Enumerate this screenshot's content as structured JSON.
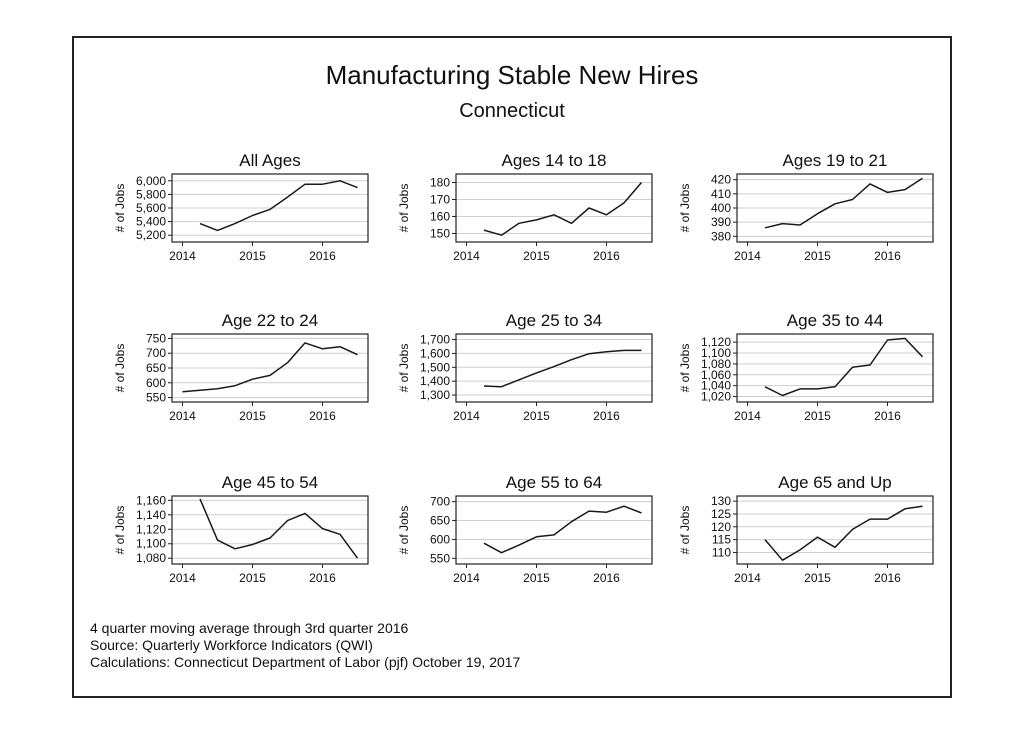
{
  "figure": {
    "title": "Manufacturing Stable New Hires",
    "subtitle": "Connecticut",
    "notes": [
      "4 quarter moving average through 3rd quarter 2016",
      "Source: Quarterly Workforce Indicators (QWI)",
      "Calculations: Connecticut Department of Labor (pjf) October 19, 2017"
    ]
  },
  "chart_data": [
    {
      "type": "line",
      "title": "All Ages",
      "ylabel": "# of Jobs",
      "xlim": [
        2013.85,
        2016.65
      ],
      "xticks": [
        2014,
        2015,
        2016
      ],
      "xtick_labels": [
        "2014",
        "2015",
        "2016"
      ],
      "ylim": [
        5100,
        6100
      ],
      "yticks": [
        5200,
        5400,
        5600,
        5800,
        6000
      ],
      "ytick_labels": [
        "5,200",
        "5,400",
        "5,600",
        "5,800",
        "6,000"
      ],
      "grid": true,
      "x": [
        2014.25,
        2014.5,
        2014.75,
        2015.0,
        2015.25,
        2015.5,
        2015.75,
        2016.0,
        2016.25,
        2016.5
      ],
      "y": [
        5370,
        5270,
        5370,
        5490,
        5580,
        5760,
        5950,
        5950,
        6000,
        5900
      ]
    },
    {
      "type": "line",
      "title": "Ages 14 to 18",
      "ylabel": "# of Jobs",
      "xlim": [
        2013.85,
        2016.65
      ],
      "xticks": [
        2014,
        2015,
        2016
      ],
      "xtick_labels": [
        "2014",
        "2015",
        "2016"
      ],
      "ylim": [
        145,
        185
      ],
      "yticks": [
        150,
        160,
        170,
        180
      ],
      "ytick_labels": [
        "150",
        "160",
        "170",
        "180"
      ],
      "grid": true,
      "x": [
        2014.25,
        2014.5,
        2014.75,
        2015.0,
        2015.25,
        2015.5,
        2015.75,
        2016.0,
        2016.25,
        2016.5
      ],
      "y": [
        152,
        149,
        156,
        158,
        161,
        156,
        165,
        161,
        168,
        180
      ]
    },
    {
      "type": "line",
      "title": "Ages 19 to 21",
      "ylabel": "# of Jobs",
      "xlim": [
        2013.85,
        2016.65
      ],
      "xticks": [
        2014,
        2015,
        2016
      ],
      "xtick_labels": [
        "2014",
        "2015",
        "2016"
      ],
      "ylim": [
        376,
        424
      ],
      "yticks": [
        380,
        390,
        400,
        410,
        420
      ],
      "ytick_labels": [
        "380",
        "390",
        "400",
        "410",
        "420"
      ],
      "grid": true,
      "x": [
        2014.25,
        2014.5,
        2014.75,
        2015.0,
        2015.25,
        2015.5,
        2015.75,
        2016.0,
        2016.25,
        2016.5
      ],
      "y": [
        386,
        389,
        388,
        396,
        403,
        406,
        417,
        411,
        413,
        421
      ]
    },
    {
      "type": "line",
      "title": "Age 22 to 24",
      "ylabel": "# of Jobs",
      "xlim": [
        2013.85,
        2016.65
      ],
      "xticks": [
        2014,
        2015,
        2016
      ],
      "xtick_labels": [
        "2014",
        "2015",
        "2016"
      ],
      "ylim": [
        535,
        765
      ],
      "yticks": [
        550,
        600,
        650,
        700,
        750
      ],
      "ytick_labels": [
        "550",
        "600",
        "650",
        "700",
        "750"
      ],
      "grid": true,
      "x": [
        2014.0,
        2014.25,
        2014.5,
        2014.75,
        2015.0,
        2015.25,
        2015.5,
        2015.75,
        2016.0,
        2016.25,
        2016.5
      ],
      "y": [
        570,
        575,
        580,
        590,
        612,
        625,
        668,
        735,
        715,
        722,
        695
      ]
    },
    {
      "type": "line",
      "title": "Age 25 to 34",
      "ylabel": "# of Jobs",
      "xlim": [
        2013.85,
        2016.65
      ],
      "xticks": [
        2014,
        2015,
        2016
      ],
      "xtick_labels": [
        "2014",
        "2015",
        "2016"
      ],
      "ylim": [
        1250,
        1740
      ],
      "yticks": [
        1300,
        1400,
        1500,
        1600,
        1700
      ],
      "ytick_labels": [
        "1,300",
        "1,400",
        "1,500",
        "1,600",
        "1,700"
      ],
      "grid": true,
      "x": [
        2014.25,
        2014.5,
        2014.75,
        2015.0,
        2015.25,
        2015.5,
        2015.75,
        2016.0,
        2016.25,
        2016.5
      ],
      "y": [
        1365,
        1360,
        1410,
        1460,
        1505,
        1555,
        1598,
        1612,
        1622,
        1622
      ]
    },
    {
      "type": "line",
      "title": "Age 35 to 44",
      "ylabel": "# of Jobs",
      "xlim": [
        2013.85,
        2016.65
      ],
      "xticks": [
        2014,
        2015,
        2016
      ],
      "xtick_labels": [
        "2014",
        "2015",
        "2016"
      ],
      "ylim": [
        1010,
        1135
      ],
      "yticks": [
        1020,
        1040,
        1060,
        1080,
        1100,
        1120
      ],
      "ytick_labels": [
        "1,020",
        "1,040",
        "1,060",
        "1,080",
        "1,100",
        "1,120"
      ],
      "grid": true,
      "x": [
        2014.25,
        2014.5,
        2014.75,
        2015.0,
        2015.25,
        2015.5,
        2015.75,
        2016.0,
        2016.25,
        2016.5
      ],
      "y": [
        1038,
        1022,
        1034,
        1034,
        1038,
        1074,
        1078,
        1124,
        1127,
        1093
      ]
    },
    {
      "type": "line",
      "title": "Age 45 to 54",
      "ylabel": "# of Jobs",
      "xlim": [
        2013.85,
        2016.65
      ],
      "xticks": [
        2014,
        2015,
        2016
      ],
      "xtick_labels": [
        "2014",
        "2015",
        "2016"
      ],
      "ylim": [
        1072,
        1166
      ],
      "yticks": [
        1080,
        1100,
        1120,
        1140,
        1160
      ],
      "ytick_labels": [
        "1,080",
        "1,100",
        "1,120",
        "1,140",
        "1,160"
      ],
      "grid": true,
      "x": [
        2014.25,
        2014.5,
        2014.75,
        2015.0,
        2015.25,
        2015.5,
        2015.75,
        2016.0,
        2016.25,
        2016.5
      ],
      "y": [
        1162,
        1105,
        1093,
        1099,
        1108,
        1132,
        1142,
        1121,
        1113,
        1080
      ]
    },
    {
      "type": "line",
      "title": "Age 55 to 64",
      "ylabel": "# of Jobs",
      "xlim": [
        2013.85,
        2016.65
      ],
      "xticks": [
        2014,
        2015,
        2016
      ],
      "xtick_labels": [
        "2014",
        "2015",
        "2016"
      ],
      "ylim": [
        535,
        715
      ],
      "yticks": [
        550,
        600,
        650,
        700
      ],
      "ytick_labels": [
        "550",
        "600",
        "650",
        "700"
      ],
      "grid": true,
      "x": [
        2014.25,
        2014.5,
        2014.75,
        2015.0,
        2015.25,
        2015.5,
        2015.75,
        2016.0,
        2016.25,
        2016.5
      ],
      "y": [
        590,
        565,
        585,
        607,
        612,
        647,
        675,
        672,
        688,
        670
      ]
    },
    {
      "type": "line",
      "title": "Age 65 and Up",
      "ylabel": "# of Jobs",
      "xlim": [
        2013.85,
        2016.65
      ],
      "xticks": [
        2014,
        2015,
        2016
      ],
      "xtick_labels": [
        "2014",
        "2015",
        "2016"
      ],
      "ylim": [
        105.5,
        132
      ],
      "yticks": [
        110,
        115,
        120,
        125,
        130
      ],
      "ytick_labels": [
        "110",
        "115",
        "120",
        "125",
        "130"
      ],
      "grid": true,
      "x": [
        2014.25,
        2014.5,
        2014.75,
        2015.0,
        2015.25,
        2015.5,
        2015.75,
        2016.0,
        2016.25,
        2016.5
      ],
      "y": [
        115,
        107,
        111,
        116,
        112,
        119,
        123,
        123,
        127,
        128
      ]
    }
  ]
}
